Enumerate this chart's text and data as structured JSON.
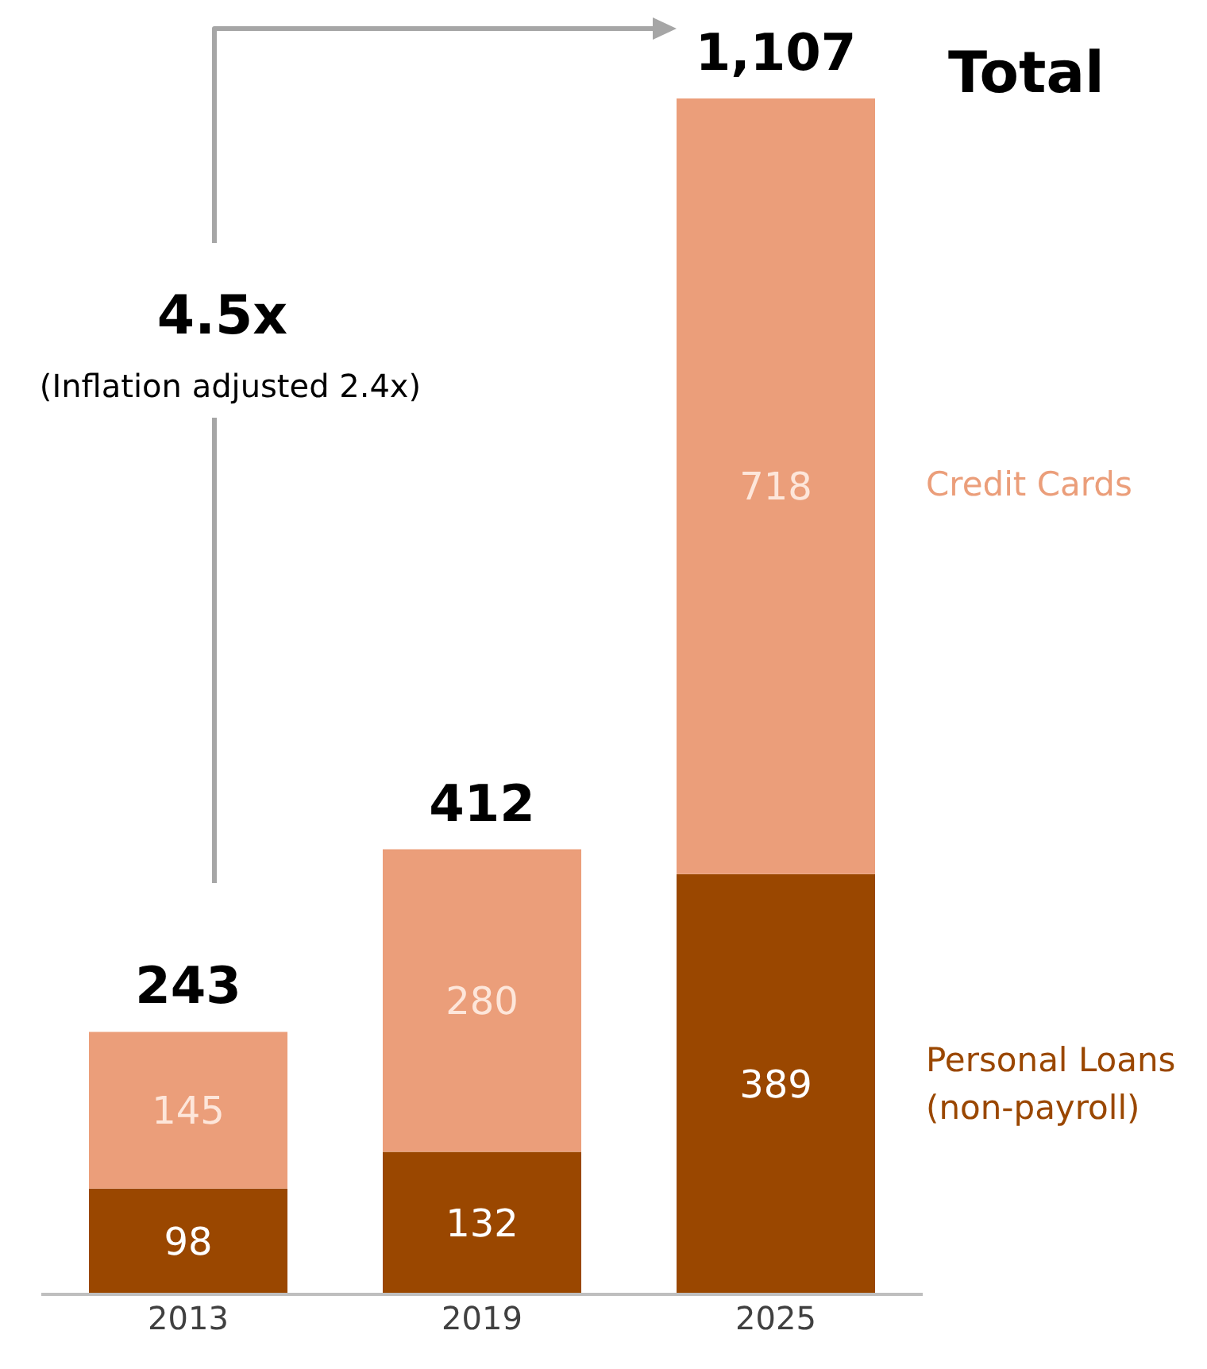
{
  "chart_data": {
    "type": "bar",
    "stacked": true,
    "data_labels": true,
    "categories": [
      "2013",
      "2019",
      "2025"
    ],
    "series": [
      {
        "name": "Personal Loans (non-payroll)",
        "color": "#9a4700",
        "values": [
          98,
          132,
          389
        ]
      },
      {
        "name": "Credit Cards",
        "color": "#eb9e7a",
        "values": [
          145,
          280,
          718
        ]
      }
    ],
    "totals": [
      "243",
      "412",
      "1,107"
    ],
    "annotations": [
      "Total",
      "4.5x",
      "(Inflation adjusted 2.4x)"
    ]
  }
}
